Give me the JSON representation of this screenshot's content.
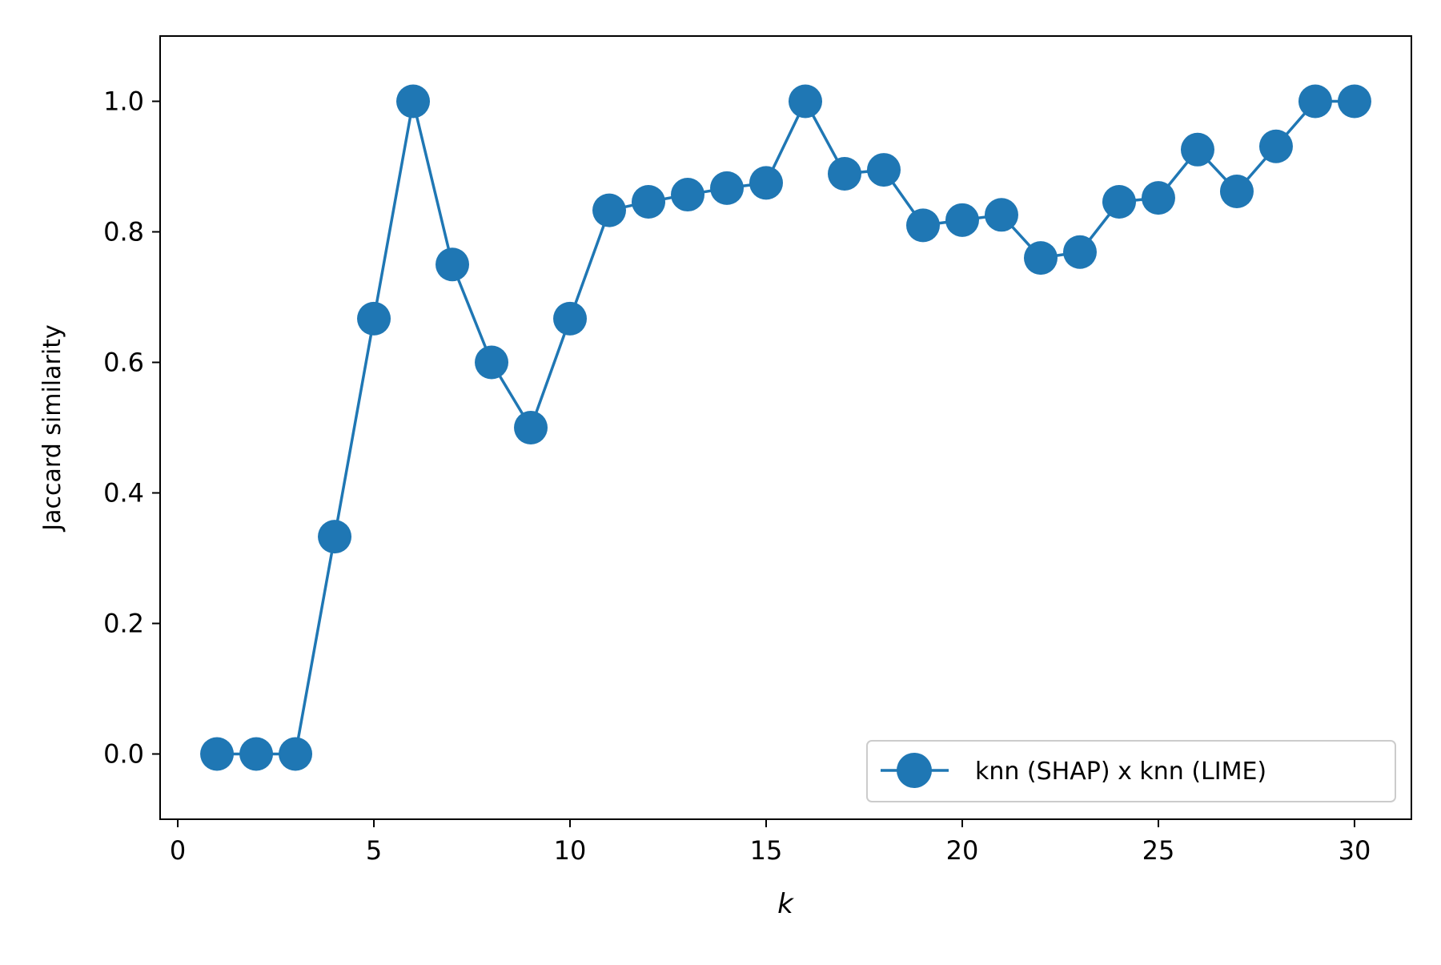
{
  "chart_data": {
    "type": "line",
    "title": "",
    "xlabel": "k",
    "ylabel": "Jaccard similarity",
    "xlim": [
      -0.45,
      31.45
    ],
    "ylim": [
      -0.1,
      1.1
    ],
    "x_ticks": [
      0,
      5,
      10,
      15,
      20,
      25,
      30
    ],
    "y_ticks": [
      0.0,
      0.2,
      0.4,
      0.6,
      0.8,
      1.0
    ],
    "x_tick_labels": [
      "0",
      "5",
      "10",
      "15",
      "20",
      "25",
      "30"
    ],
    "y_tick_labels": [
      "0.0",
      "0.2",
      "0.4",
      "0.6",
      "0.8",
      "1.0"
    ],
    "grid": false,
    "legend_position": "lower-right",
    "series": [
      {
        "name": "knn (SHAP) x knn (LIME)",
        "color": "#1f77b4",
        "marker": "circle",
        "x": [
          1,
          2,
          3,
          4,
          5,
          6,
          7,
          8,
          9,
          10,
          11,
          12,
          13,
          14,
          15,
          16,
          17,
          18,
          19,
          20,
          21,
          22,
          23,
          24,
          25,
          26,
          27,
          28,
          29,
          30
        ],
        "y": [
          0.0,
          0.0,
          0.0,
          0.333,
          0.667,
          1.0,
          0.75,
          0.6,
          0.5,
          0.667,
          0.833,
          0.846,
          0.857,
          0.867,
          0.875,
          1.0,
          0.889,
          0.895,
          0.81,
          0.818,
          0.826,
          0.76,
          0.769,
          0.846,
          0.852,
          0.926,
          0.862,
          0.931,
          1.0,
          1.0
        ]
      }
    ]
  }
}
